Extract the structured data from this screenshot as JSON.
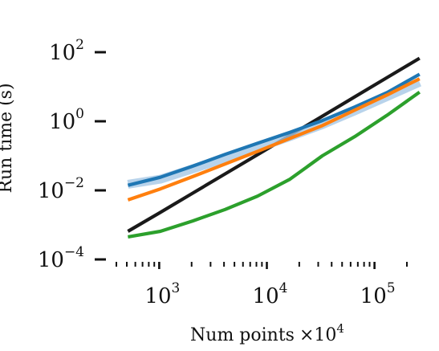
{
  "chart_data": {
    "type": "line",
    "xscale": "log",
    "yscale": "log",
    "xlabel": "Num points",
    "xlabel_multiplier": "×10",
    "xlabel_multiplier_exp": "4",
    "ylabel": "Run time (s)",
    "xlim": [
      400,
      250000
    ],
    "ylim": [
      0.0001,
      100
    ],
    "xticks": [
      {
        "base": "10",
        "exp": "3",
        "value": 1000
      },
      {
        "base": "10",
        "exp": "4",
        "value": 10000
      },
      {
        "base": "10",
        "exp": "5",
        "value": 100000
      }
    ],
    "yticks": [
      {
        "base": "10",
        "exp": "2",
        "value": 100
      },
      {
        "base": "10",
        "exp": "0",
        "value": 1
      },
      {
        "base": "10",
        "exp": "−2",
        "value": 0.01
      },
      {
        "base": "10",
        "exp": "−4",
        "value": 0.0001
      }
    ],
    "grid": false,
    "legend": null,
    "series": [
      {
        "color": "#1a1a1a",
        "x": [
          512,
          1024,
          2048,
          4096,
          8192,
          16384,
          32768,
          65536,
          131072,
          262144
        ],
        "y": [
          0.00065,
          0.0023,
          0.0083,
          0.03,
          0.108,
          0.39,
          1.4,
          5.1,
          18.5,
          67
        ]
      },
      {
        "color": "#a6c8e6",
        "band": true,
        "x": [
          512,
          1024,
          2048,
          4096,
          8192,
          16384,
          32768,
          65536,
          131072,
          262144
        ],
        "y": [
          0.015,
          0.021,
          0.042,
          0.085,
          0.17,
          0.36,
          0.8,
          2.0,
          5.2,
          13.5
        ]
      },
      {
        "color": "#1f77b4",
        "x": [
          512,
          1024,
          2048,
          4096,
          8192,
          16384,
          32768,
          65536,
          131072,
          262144
        ],
        "y": [
          0.014,
          0.024,
          0.05,
          0.11,
          0.23,
          0.48,
          1.05,
          2.6,
          6.8,
          23
        ]
      },
      {
        "color": "#ff7f0e",
        "x": [
          512,
          1024,
          2048,
          4096,
          8192,
          16384,
          32768,
          65536,
          131072,
          262144
        ],
        "y": [
          0.0053,
          0.011,
          0.025,
          0.058,
          0.135,
          0.32,
          0.75,
          2.1,
          5.8,
          17
        ]
      },
      {
        "color": "#2ca02c",
        "x": [
          512,
          1024,
          2048,
          4096,
          8192,
          16384,
          32768,
          65536,
          131072,
          262144
        ],
        "y": [
          0.00045,
          0.00065,
          0.0013,
          0.0028,
          0.0068,
          0.021,
          0.1,
          0.36,
          1.5,
          7
        ]
      }
    ]
  }
}
